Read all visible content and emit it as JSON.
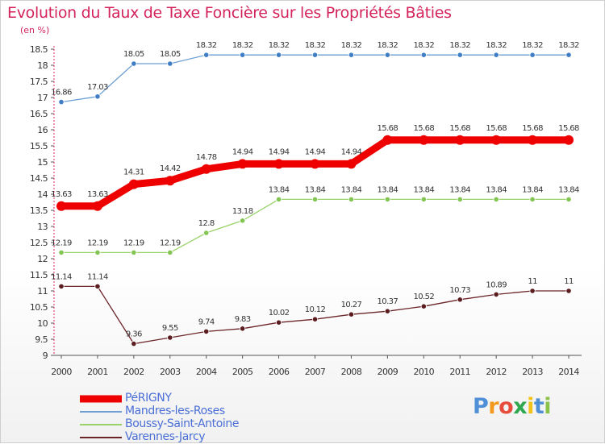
{
  "title": "Evolution du Taux de Taxe Foncière sur les Propriétés Bâties",
  "subtitle": "(en %)",
  "logo": {
    "text": "Proxiti",
    "letter_colors": [
      "#4f8fd6",
      "#f39a1e",
      "#e74c3c",
      "#2fa84f",
      "#f2c219",
      "#4f8fd6",
      "#8bc34a"
    ]
  },
  "chart_data": {
    "type": "line",
    "x": [
      "2000",
      "2001",
      "2002",
      "2003",
      "2004",
      "2005",
      "2006",
      "2007",
      "2008",
      "2009",
      "2010",
      "2011",
      "2012",
      "2013",
      "2014"
    ],
    "ylim": [
      9,
      18.5
    ],
    "yticks": [
      "9",
      "9.5",
      "10",
      "10.5",
      "11",
      "11.5",
      "12",
      "12.5",
      "13",
      "13.5",
      "14",
      "14.5",
      "15",
      "15.5",
      "16",
      "16.5",
      "17",
      "17.5",
      "18",
      "18.5"
    ],
    "grid": false,
    "legend_position": "bottom-left",
    "series": [
      {
        "name": "PéRIGNY",
        "color": "#ee0000",
        "values": [
          13.63,
          13.63,
          14.31,
          14.42,
          14.78,
          14.94,
          14.94,
          14.94,
          14.94,
          15.68,
          15.68,
          15.68,
          15.68,
          15.68,
          15.68
        ],
        "labels": [
          "13.63",
          "13.63",
          "14.31",
          "14.42",
          "14.78",
          "14.94",
          "14.94",
          "14.94",
          "14.94",
          "15.68",
          "15.68",
          "15.68",
          "15.68",
          "15.68",
          "15.68"
        ]
      },
      {
        "name": "Mandres-les-Roses",
        "color": "#6d9fd3",
        "values": [
          16.86,
          17.03,
          18.05,
          18.05,
          18.32,
          18.32,
          18.32,
          18.32,
          18.32,
          18.32,
          18.32,
          18.32,
          18.32,
          18.32,
          18.32
        ],
        "labels": [
          "16.86",
          "17.03",
          "18.05",
          "18.05",
          "18.32",
          "18.32",
          "18.32",
          "18.32",
          "18.32",
          "18.32",
          "18.32",
          "18.32",
          "18.32",
          "18.32",
          "18.32"
        ]
      },
      {
        "name": "Boussy-Saint-Antoine",
        "color": "#9ad26a",
        "values": [
          12.19,
          12.19,
          12.19,
          12.19,
          12.8,
          13.18,
          13.84,
          13.84,
          13.84,
          13.84,
          13.84,
          13.84,
          13.84,
          13.84,
          13.84
        ],
        "labels": [
          "12.19",
          "12.19",
          "12.19",
          "12.19",
          "12.8",
          "13.18",
          "13.84",
          "13.84",
          "13.84",
          "13.84",
          "13.84",
          "13.84",
          "13.84",
          "13.84",
          "13.84"
        ]
      },
      {
        "name": "Varennes-Jarcy",
        "color": "#6b2428",
        "values": [
          11.14,
          11.14,
          9.36,
          9.55,
          9.74,
          9.83,
          10.02,
          10.12,
          10.27,
          10.37,
          10.52,
          10.73,
          10.89,
          11,
          11
        ],
        "labels": [
          "11.14",
          "11.14",
          "9.36",
          "9.55",
          "9.74",
          "9.83",
          "10.02",
          "10.12",
          "10.27",
          "10.37",
          "10.52",
          "10.73",
          "10.89",
          "11",
          "11"
        ]
      }
    ]
  }
}
